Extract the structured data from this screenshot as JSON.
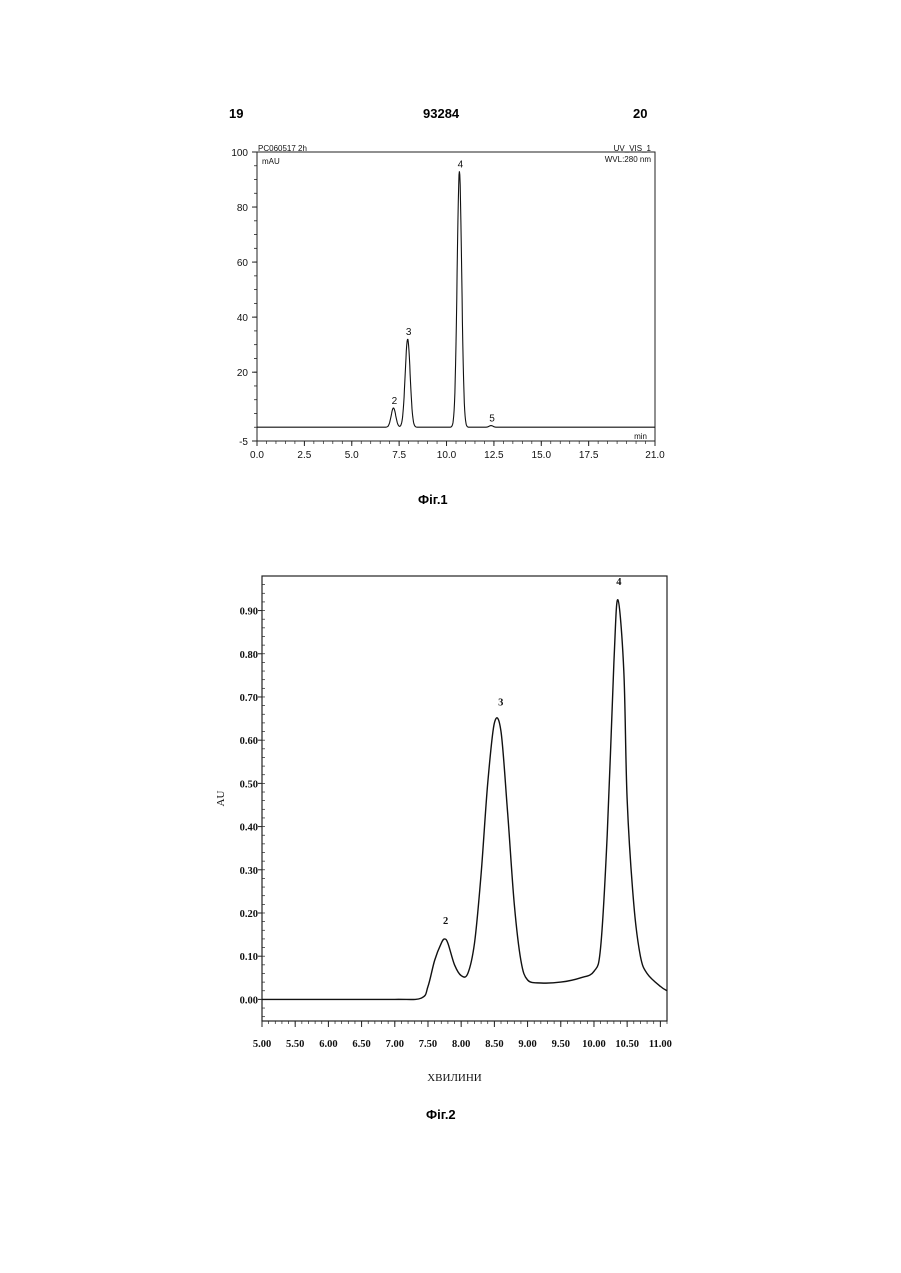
{
  "header": {
    "left": "19",
    "center": "93284",
    "right": "20"
  },
  "figures": {
    "fig1_caption": "Фіг.1",
    "fig2_caption": "Фіг.2"
  },
  "chart_data": [
    {
      "type": "line",
      "top_left_label": "PC060517 2h",
      "top_right_label": "UV_VIS_1",
      "wavelength_label": "WVL:280 nm",
      "ylabel": "mAU",
      "xlabel": "min",
      "xlim": [
        0,
        21
      ],
      "ylim": [
        -5,
        100
      ],
      "x_ticks": [
        "0.0",
        "2.5",
        "5.0",
        "7.5",
        "10.0",
        "12.5",
        "15.0",
        "17.5",
        "21.0"
      ],
      "x_tick_values": [
        0,
        2.5,
        5,
        7.5,
        10,
        12.5,
        15,
        17.5,
        21
      ],
      "y_ticks": [
        "100",
        "80",
        "60",
        "40",
        "20",
        "-5"
      ],
      "y_tick_values": [
        100,
        80,
        60,
        40,
        20,
        -5
      ],
      "baseline": 0,
      "peaks": [
        {
          "label": "2",
          "x": 7.2,
          "height": 7,
          "width": 0.12
        },
        {
          "label": "3",
          "x": 7.95,
          "height": 32,
          "width": 0.13
        },
        {
          "label": "4",
          "x": 10.68,
          "height": 93,
          "width": 0.12
        },
        {
          "label": "5",
          "x": 12.35,
          "height": 0.6,
          "width": 0.1
        }
      ]
    },
    {
      "type": "line",
      "ylabel": "AU",
      "xlabel": "ХВИЛИНИ",
      "xlim": [
        5.0,
        11.1
      ],
      "ylim": [
        -0.05,
        0.98
      ],
      "x_ticks": [
        "5.00",
        "5.50",
        "6.00",
        "6.50",
        "7.00",
        "7.50",
        "8.00",
        "8.50",
        "9.00",
        "9.50",
        "10.00",
        "10.50",
        "11.00"
      ],
      "x_tick_values": [
        5.0,
        5.5,
        6.0,
        6.5,
        7.0,
        7.5,
        8.0,
        8.5,
        9.0,
        9.5,
        10.0,
        10.5,
        11.0
      ],
      "y_ticks": [
        "0.00",
        "0.10",
        "0.20",
        "0.30",
        "0.40",
        "0.50",
        "0.60",
        "0.70",
        "0.80",
        "0.90"
      ],
      "y_tick_values": [
        0.0,
        0.1,
        0.2,
        0.3,
        0.4,
        0.5,
        0.6,
        0.7,
        0.8,
        0.9
      ],
      "series": [
        {
          "x": [
            5.0,
            6.0,
            7.0,
            7.4,
            7.5,
            7.6,
            7.7,
            7.75,
            7.8,
            7.9,
            8.0,
            8.1,
            8.2,
            8.3,
            8.4,
            8.5,
            8.6,
            8.7,
            8.8,
            8.9,
            9.0,
            9.2,
            9.5,
            9.8,
            10.0,
            10.1,
            10.2,
            10.3,
            10.36,
            10.45,
            10.5,
            10.6,
            10.7,
            10.8,
            11.0,
            11.1
          ],
          "y": [
            0.0,
            0.0,
            0.0,
            0.003,
            0.03,
            0.09,
            0.13,
            0.14,
            0.13,
            0.08,
            0.055,
            0.06,
            0.13,
            0.29,
            0.5,
            0.64,
            0.62,
            0.43,
            0.22,
            0.09,
            0.045,
            0.038,
            0.04,
            0.05,
            0.065,
            0.12,
            0.38,
            0.78,
            0.925,
            0.76,
            0.46,
            0.22,
            0.1,
            0.06,
            0.03,
            0.02
          ]
        }
      ],
      "peak_labels": [
        {
          "label": "2",
          "x": 7.75,
          "y": 0.14
        },
        {
          "label": "3",
          "x": 8.58,
          "y": 0.645
        },
        {
          "label": "4",
          "x": 10.36,
          "y": 0.925
        }
      ]
    }
  ]
}
